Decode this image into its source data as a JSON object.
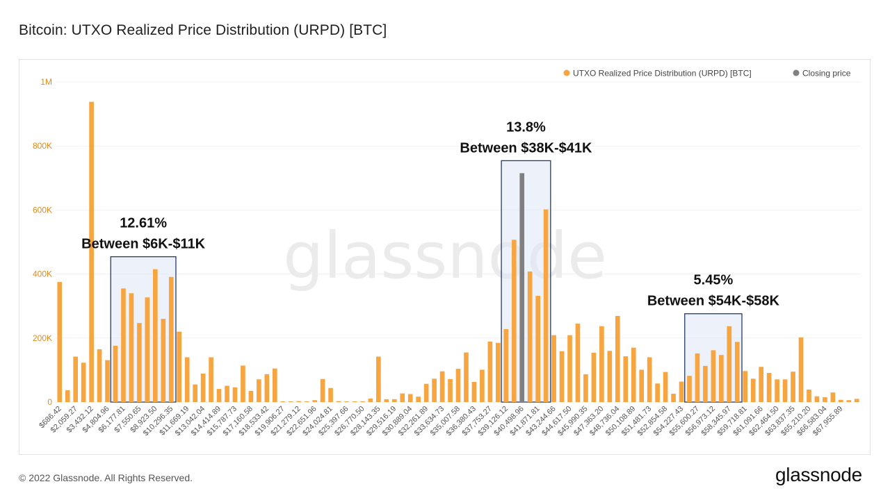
{
  "title": "Bitcoin: UTXO Realized Price Distribution (URPD) [BTC]",
  "footer": {
    "copyright": "© 2022 Glassnode. All Rights Reserved.",
    "logo": "glassnode"
  },
  "watermark": "glassnode",
  "colors": {
    "bar": "#f7a540",
    "closing": "#808080",
    "highlight_fill": "#dfe6f5",
    "highlight_stroke": "#223a66",
    "ytick": "#e08a1e"
  },
  "chart_data": {
    "type": "bar",
    "legend": [
      {
        "label": "UTXO Realized Price Distribution (URPD) [BTC]",
        "color": "#f7a540"
      },
      {
        "label": "Closing price",
        "color": "#808080"
      }
    ],
    "legend_position": "top-right",
    "ylim": [
      0,
      1000000
    ],
    "yticks": [
      {
        "value": 0,
        "label": "0"
      },
      {
        "value": 200000,
        "label": "200K"
      },
      {
        "value": 400000,
        "label": "400K"
      },
      {
        "value": 600000,
        "label": "600K"
      },
      {
        "value": 800000,
        "label": "800K"
      },
      {
        "value": 1000000,
        "label": "1M"
      }
    ],
    "x_tick_labels": [
      "$686.42",
      "$2,059.27",
      "$3,432.12",
      "$4,804.96",
      "$6,177.81",
      "$7,550.65",
      "$8,923.50",
      "$10,296.35",
      "$11,669.19",
      "$13,042.04",
      "$14,414.89",
      "$15,787.73",
      "$17,160.58",
      "$18,533.42",
      "$19,906.27",
      "$21,279.12",
      "$22,651.96",
      "$24,024.81",
      "$25,397.66",
      "$26,770.50",
      "$28,143.35",
      "$29,516.19",
      "$30,889.04",
      "$32,261.89",
      "$33,634.73",
      "$35,007.58",
      "$36,380.43",
      "$37,753.27",
      "$39,126.12",
      "$40,498.96",
      "$41,871.81",
      "$43,244.66",
      "$44,617.50",
      "$45,990.35",
      "$47,363.20",
      "$48,736.04",
      "$50,108.89",
      "$51,481.73",
      "$52,854.58",
      "$54,227.43",
      "$55,600.27",
      "$56,973.12",
      "$58,345.97",
      "$59,718.81",
      "$61,091.66",
      "$62,464.50",
      "$63,837.35",
      "$65,210.20",
      "$66,583.04",
      "$67,955.89"
    ],
    "values": [
      375000,
      37000,
      142000,
      123000,
      938000,
      165000,
      131000,
      176000,
      355000,
      340000,
      247000,
      327000,
      415000,
      260000,
      391000,
      220000,
      140000,
      55000,
      89000,
      140000,
      41000,
      51000,
      46000,
      114000,
      35000,
      71000,
      87000,
      105000,
      1500,
      1500,
      3000,
      2000,
      6000,
      72000,
      44000,
      3000,
      2000,
      2000,
      2000,
      11000,
      142000,
      9000,
      9000,
      27000,
      25000,
      17000,
      57000,
      73000,
      96000,
      72000,
      104000,
      155000,
      63000,
      101000,
      189000,
      185000,
      228000,
      507000,
      715000,
      408000,
      332000,
      602000,
      209000,
      159000,
      209000,
      245000,
      87000,
      154000,
      237000,
      160000,
      269000,
      143000,
      170000,
      101000,
      140000,
      58000,
      94000,
      26000,
      64000,
      82000,
      152000,
      113000,
      162000,
      147000,
      237000,
      188000,
      97000,
      73000,
      110000,
      91000,
      71000,
      71000,
      95000,
      202000,
      39000,
      18000,
      15000,
      30000,
      7000,
      6000,
      10000
    ],
    "closing_price_index": 58,
    "annotations": [
      {
        "percent": "12.61%",
        "range": "Between $6K-$11K",
        "from_index": 7,
        "to_index": 14
      },
      {
        "percent": "13.8%",
        "range": "Between $38K-$41K",
        "from_index": 56,
        "to_index": 61
      },
      {
        "percent": "5.45%",
        "range": "Between $54K-$58K",
        "from_index": 79,
        "to_index": 85
      }
    ]
  }
}
